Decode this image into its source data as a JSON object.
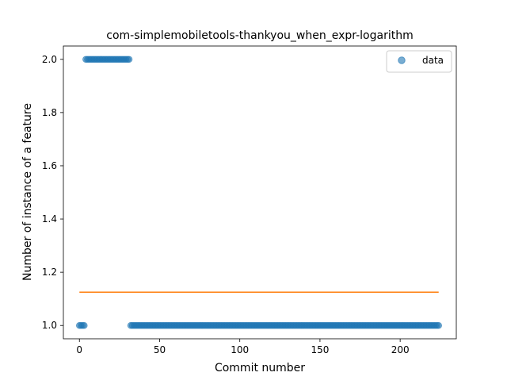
{
  "chart_data": {
    "type": "scatter",
    "title": "com-simplemobiletools-thankyou_when_expr-logarithm",
    "xlabel": "Commit number",
    "ylabel": "Number of instance of a feature",
    "xlim": [
      -10,
      235
    ],
    "ylim": [
      0.95,
      2.05
    ],
    "xticks": [
      0,
      50,
      100,
      150,
      200
    ],
    "yticks": [
      1.0,
      1.2,
      1.4,
      1.6,
      1.8,
      2.0
    ],
    "ytick_labels": [
      "1.0",
      "1.2",
      "1.4",
      "1.6",
      "1.8",
      "2.0"
    ],
    "legend": {
      "position": "top-right",
      "entries": [
        "data"
      ]
    },
    "grid": false,
    "series": [
      {
        "name": "data",
        "kind": "scatter",
        "color": "#1f77b4",
        "segments": [
          {
            "x_start": 0,
            "x_end": 3,
            "y": 1
          },
          {
            "x_start": 4,
            "x_end": 31,
            "y": 2
          },
          {
            "x_start": 32,
            "x_end": 224,
            "y": 1
          }
        ]
      },
      {
        "kind": "line",
        "color": "#ff7f0e",
        "x": [
          0,
          224
        ],
        "y": [
          1.125,
          1.125
        ]
      }
    ]
  }
}
